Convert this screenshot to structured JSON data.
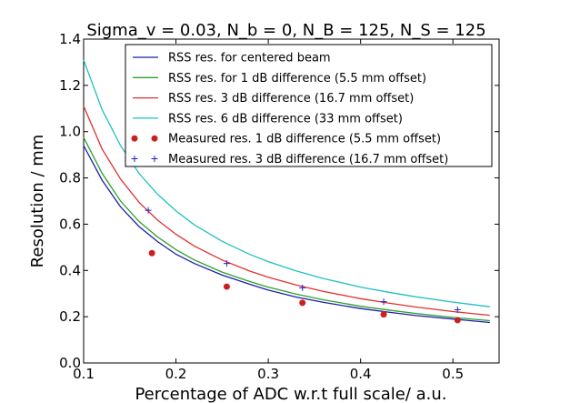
{
  "chart_data": {
    "type": "line",
    "title": "Sigma_v = 0.03, N_b = 0, N_B = 125, N_S = 125",
    "xlabel": "Percentage of ADC w.r.t full scale/ a.u.",
    "ylabel": "Resolution / mm",
    "xlim": [
      0.1,
      0.55
    ],
    "ylim": [
      0.0,
      1.4
    ],
    "xticks": [
      0.1,
      0.2,
      0.3,
      0.4,
      0.5
    ],
    "xtick_labels": [
      "0.1",
      "0.2",
      "0.3",
      "0.4",
      "0.5"
    ],
    "yticks": [
      0.0,
      0.2,
      0.4,
      0.6,
      0.8,
      1.0,
      1.2,
      1.4
    ],
    "ytick_labels": [
      "0.0",
      "0.2",
      "0.4",
      "0.6",
      "0.8",
      "1.0",
      "1.2",
      "1.4"
    ],
    "grid": false,
    "legend_position": "top-right",
    "series": [
      {
        "name": "RSS res. for centered beam",
        "kind": "line",
        "color": "#1f1fa8",
        "x": [
          0.1,
          0.12,
          0.14,
          0.16,
          0.18,
          0.2,
          0.22,
          0.25,
          0.28,
          0.3,
          0.33,
          0.36,
          0.4,
          0.43,
          0.46,
          0.5,
          0.54
        ],
        "y": [
          0.94,
          0.79,
          0.675,
          0.59,
          0.525,
          0.47,
          0.43,
          0.38,
          0.34,
          0.315,
          0.285,
          0.262,
          0.235,
          0.22,
          0.205,
          0.19,
          0.175
        ]
      },
      {
        "name": "RSS res. for 1 dB difference (5.5 mm offset)",
        "kind": "line",
        "color": "#2ca02c",
        "x": [
          0.1,
          0.12,
          0.14,
          0.16,
          0.18,
          0.2,
          0.22,
          0.25,
          0.28,
          0.3,
          0.33,
          0.36,
          0.4,
          0.43,
          0.46,
          0.5,
          0.54
        ],
        "y": [
          0.975,
          0.82,
          0.7,
          0.612,
          0.545,
          0.49,
          0.445,
          0.393,
          0.352,
          0.328,
          0.298,
          0.273,
          0.245,
          0.229,
          0.214,
          0.197,
          0.183
        ]
      },
      {
        "name": "RSS res. 3 dB difference (16.7 mm offset)",
        "kind": "line",
        "color": "#e03030",
        "x": [
          0.1,
          0.12,
          0.14,
          0.16,
          0.18,
          0.2,
          0.22,
          0.25,
          0.28,
          0.3,
          0.33,
          0.36,
          0.4,
          0.43,
          0.46,
          0.5,
          0.54
        ],
        "y": [
          1.11,
          0.925,
          0.795,
          0.695,
          0.618,
          0.556,
          0.505,
          0.445,
          0.397,
          0.371,
          0.337,
          0.309,
          0.278,
          0.259,
          0.242,
          0.222,
          0.206
        ]
      },
      {
        "name": "RSS res. 6 dB difference (33 mm offset)",
        "kind": "line",
        "color": "#20c0c0",
        "x": [
          0.1,
          0.12,
          0.14,
          0.16,
          0.18,
          0.2,
          0.22,
          0.25,
          0.28,
          0.3,
          0.33,
          0.36,
          0.4,
          0.43,
          0.46,
          0.5,
          0.54
        ],
        "y": [
          1.31,
          1.095,
          0.94,
          0.82,
          0.73,
          0.657,
          0.597,
          0.526,
          0.469,
          0.438,
          0.398,
          0.365,
          0.328,
          0.306,
          0.286,
          0.263,
          0.243
        ]
      },
      {
        "name": "Measured res. 1 dB difference (5.5 mm offset)",
        "kind": "scatter",
        "marker": "circle",
        "color": "#cc1f1f",
        "x": [
          0.174,
          0.255,
          0.337,
          0.425,
          0.505
        ],
        "y": [
          0.475,
          0.33,
          0.26,
          0.21,
          0.185
        ]
      },
      {
        "name": "Measured res. 3 dB difference (16.7 mm offset)",
        "kind": "scatter",
        "marker": "plus",
        "color": "#2020c8",
        "x": [
          0.17,
          0.255,
          0.337,
          0.425,
          0.505
        ],
        "y": [
          0.66,
          0.43,
          0.325,
          0.265,
          0.23
        ]
      }
    ]
  }
}
